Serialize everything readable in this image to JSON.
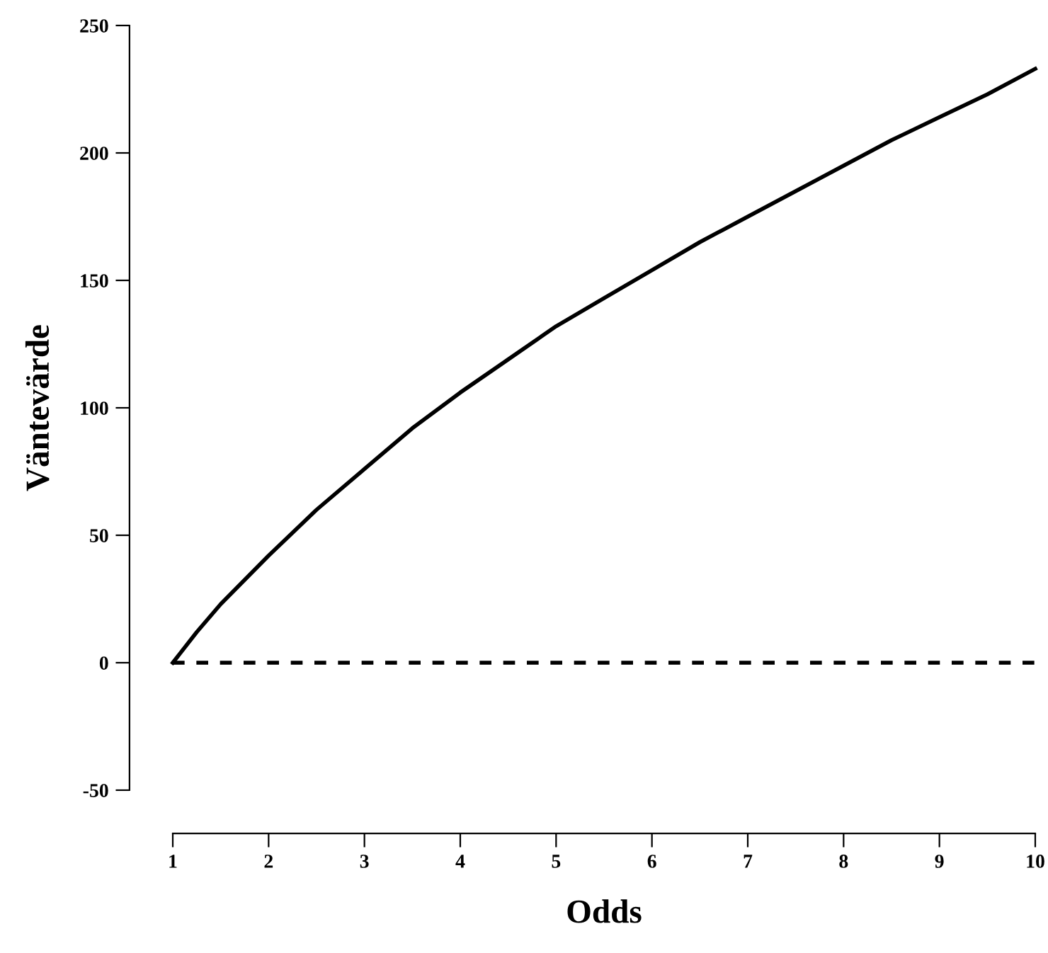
{
  "chart_data": {
    "type": "line",
    "xlabel": "Odds",
    "ylabel": "Väntevärde",
    "x": [
      1,
      1.25,
      1.5,
      2,
      2.5,
      3,
      3.5,
      4,
      4.5,
      5,
      5.5,
      6,
      6.5,
      7,
      7.5,
      8,
      8.5,
      9,
      9.5,
      10
    ],
    "series": [
      {
        "color": "#000000",
        "values": [
          0,
          12,
          23,
          42,
          60,
          76,
          92,
          106,
          119,
          132,
          143,
          154,
          165,
          175,
          185,
          195,
          205,
          214,
          223,
          233
        ]
      }
    ],
    "xlim": [
      1,
      10
    ],
    "ylim": [
      -50,
      250
    ],
    "xticks": [
      1,
      2,
      3,
      4,
      5,
      6,
      7,
      8,
      9,
      10
    ],
    "yticks": [
      -50,
      0,
      50,
      100,
      150,
      200,
      250
    ],
    "ref_lines": [
      {
        "axis": "y",
        "value": 0,
        "color": "#000000",
        "line_style": "dashed"
      }
    ],
    "grid": false,
    "legend": false,
    "marker": "none",
    "line_style": "solid"
  }
}
